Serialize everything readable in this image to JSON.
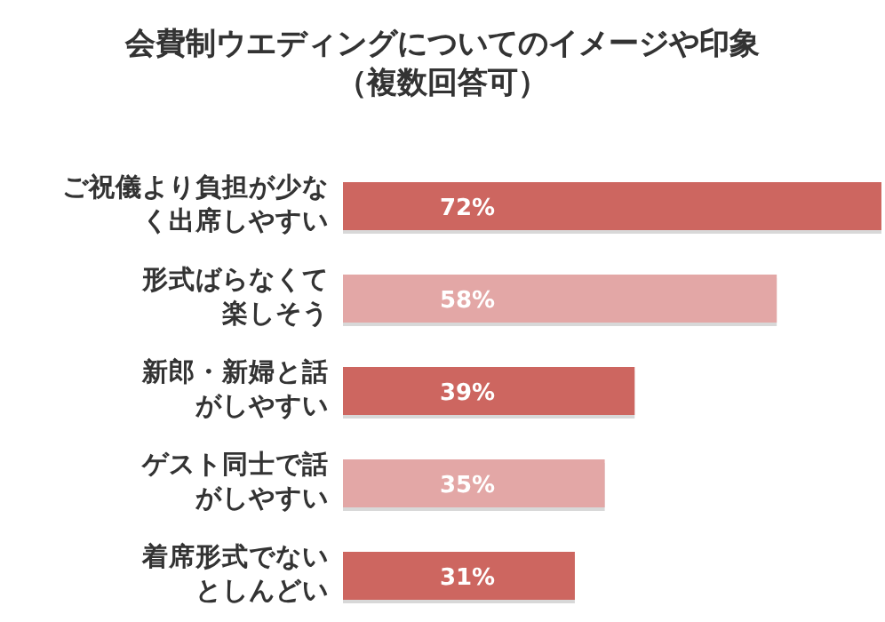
{
  "chart_data": {
    "type": "bar",
    "orientation": "horizontal",
    "title": "会費制ウエディングについてのイメージや印象",
    "subtitle": "（複数回答可）",
    "categories": [
      "ご祝儀より負担が少なく出席しやすい",
      "形式ばらなくて楽しそう",
      "新郎・新婦と話がしやすい",
      "ゲスト同士で話がしやすい",
      "着席形式でないとしんどい"
    ],
    "values": [
      72,
      58,
      39,
      35,
      31
    ],
    "colors": [
      "#cd6660",
      "#e3a7a6",
      "#cd6660",
      "#e3a7a6",
      "#cd6660"
    ],
    "value_labels": [
      "72%",
      "58%",
      "39%",
      "35%",
      "31%"
    ]
  }
}
